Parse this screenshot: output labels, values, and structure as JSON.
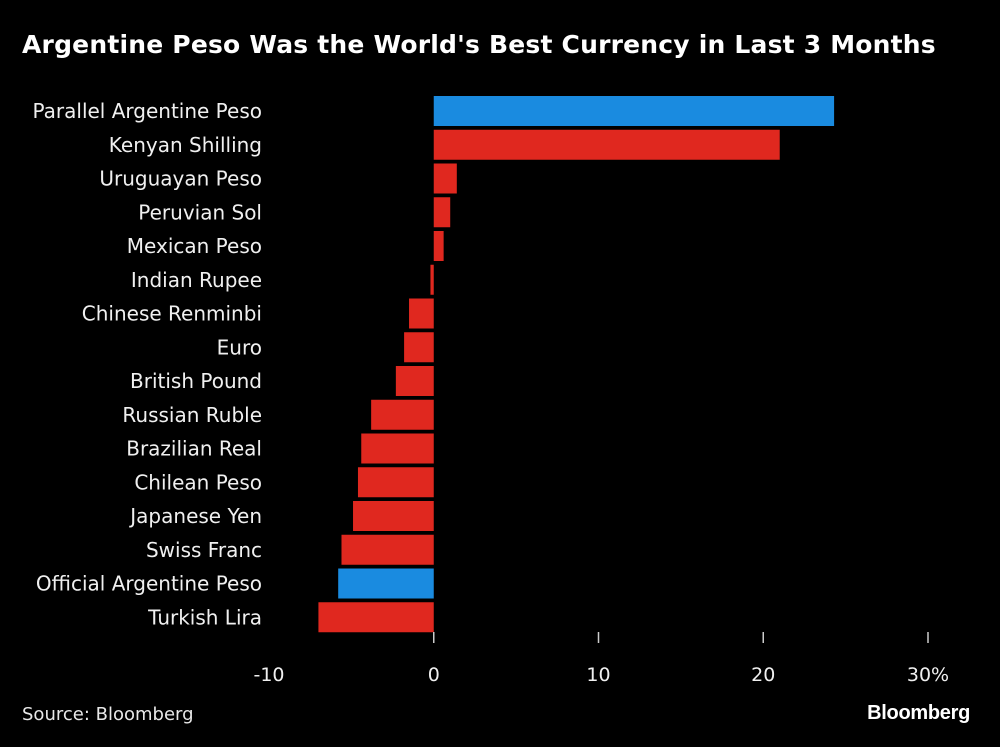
{
  "chart_data": {
    "type": "bar",
    "orientation": "horizontal",
    "title": "Argentine Peso Was the World's Best Currency in Last 3 Months",
    "categories": [
      "Parallel Argentine Peso",
      "Kenyan Shilling",
      "Uruguayan Peso",
      "Peruvian Sol",
      "Mexican Peso",
      "Indian Rupee",
      "Chinese Renminbi",
      "Euro",
      "British Pound",
      "Russian Ruble",
      "Brazilian Real",
      "Chilean Peso",
      "Japanese Yen",
      "Swiss Franc",
      "Official Argentine Peso",
      "Turkish Lira"
    ],
    "values": [
      24.3,
      21.0,
      1.4,
      1.0,
      0.6,
      -0.2,
      -1.5,
      -1.8,
      -2.3,
      -3.8,
      -4.4,
      -4.6,
      -4.9,
      -5.6,
      -5.8,
      -7.0
    ],
    "highlight": [
      true,
      false,
      false,
      false,
      false,
      false,
      false,
      false,
      false,
      false,
      false,
      false,
      false,
      false,
      true,
      false
    ],
    "colors": {
      "highlight": "#1a8be0",
      "default": "#e0281f",
      "background": "#000000",
      "text": "#ffffff"
    },
    "xlim": [
      -10,
      30
    ],
    "xticks": [
      -10,
      0,
      10,
      20,
      30
    ],
    "xtick_labels": [
      "-10",
      "0",
      "10",
      "20",
      "30%"
    ],
    "xlabel": "",
    "ylabel": "",
    "grid": false,
    "legend": "none"
  },
  "footer": {
    "source": "Source: Bloomberg",
    "logo": "Bloomberg"
  }
}
